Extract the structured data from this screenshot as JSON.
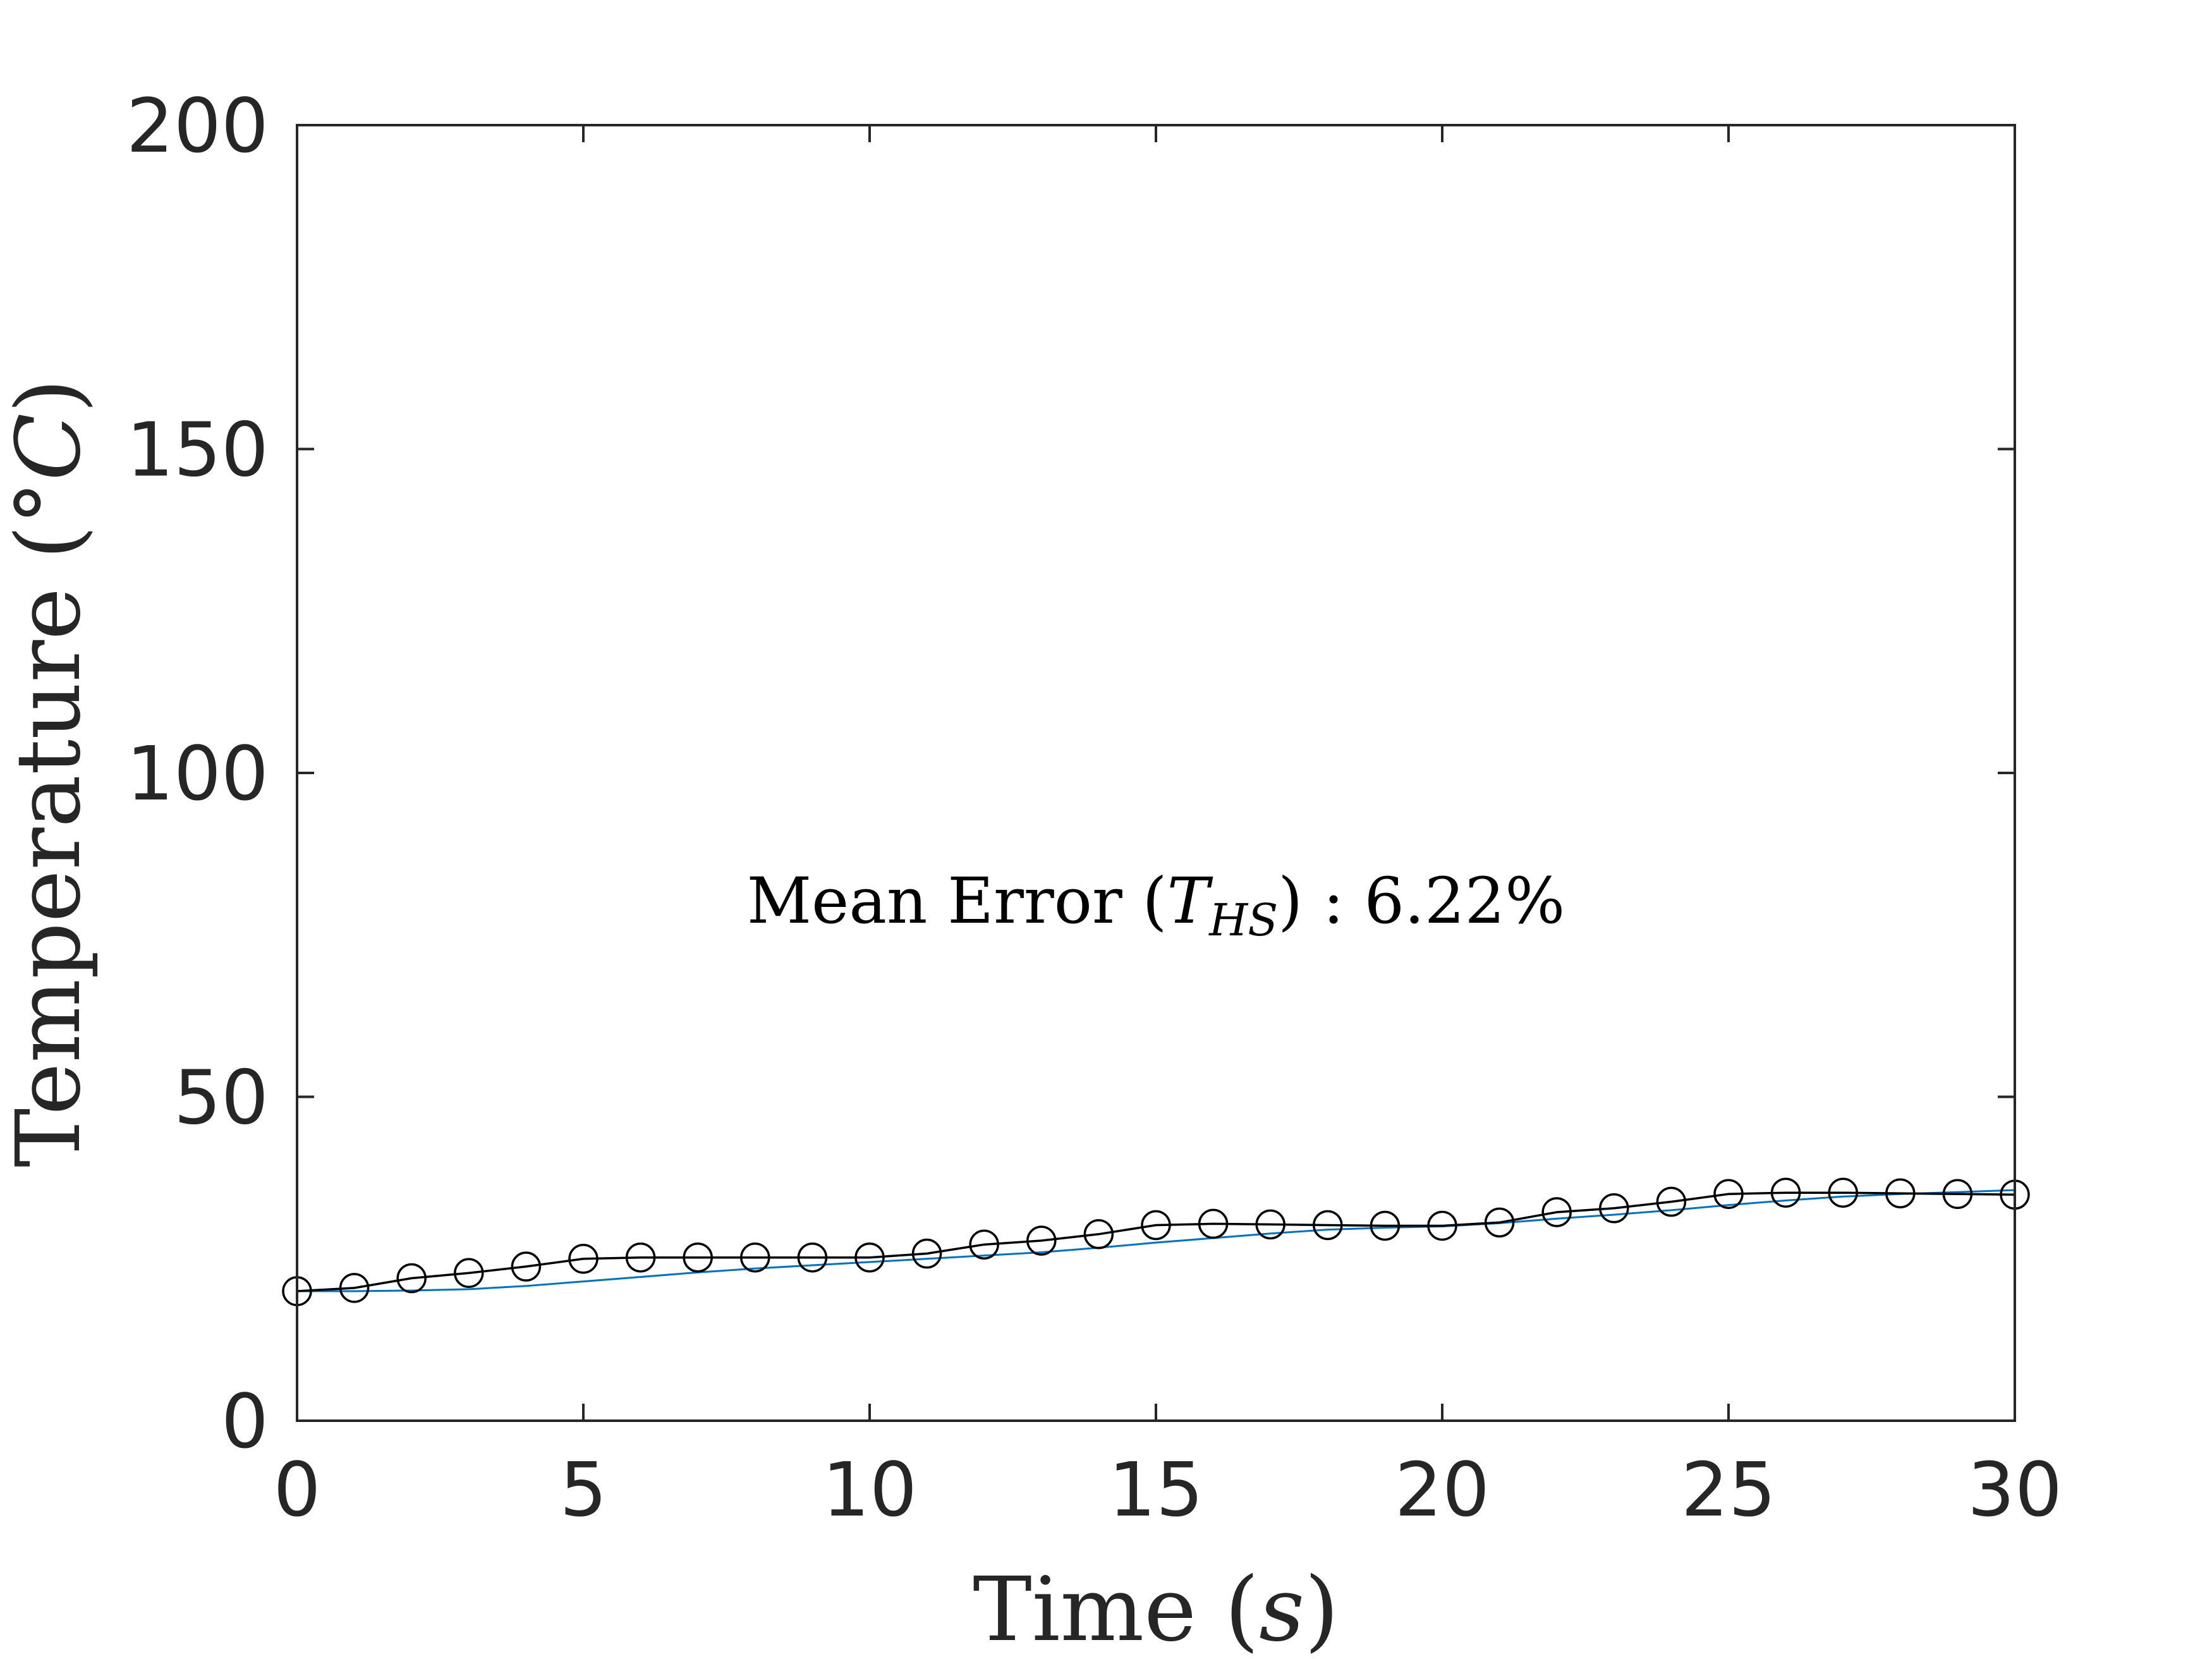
{
  "chart_data": {
    "type": "line",
    "title": "",
    "xlabel": {
      "text": "Time (",
      "var": "s",
      "close": ")"
    },
    "ylabel": {
      "text": "Temperature (°",
      "var": "C",
      "close": ")"
    },
    "xlim": [
      0,
      30
    ],
    "ylim": [
      0,
      200
    ],
    "xticks": [
      0,
      5,
      10,
      15,
      20,
      25,
      30
    ],
    "yticks": [
      0,
      50,
      100,
      150,
      200
    ],
    "grid": false,
    "annotation": {
      "prefix": "Mean Error (",
      "var": "T",
      "sub": "HS",
      "suffix": ") : 6.22%",
      "x": 15,
      "y": 80
    },
    "series": [
      {
        "style": "line",
        "color": "#0072BD",
        "x": [
          0,
          1,
          2,
          3,
          4,
          5,
          6,
          7,
          8,
          9,
          10,
          11,
          12,
          13,
          14,
          15,
          16,
          17,
          18,
          19,
          20,
          21,
          22,
          23,
          24,
          25,
          26,
          27,
          28,
          29,
          30
        ],
        "y": [
          20,
          20,
          20.1,
          20.3,
          20.8,
          21.5,
          22.2,
          22.9,
          23.5,
          24,
          24.5,
          25,
          25.5,
          26,
          26.7,
          27.5,
          28.2,
          28.9,
          29.5,
          29.8,
          30,
          30.5,
          31.2,
          31.8,
          32.5,
          33.3,
          34,
          34.6,
          35,
          35.3,
          35.6
        ]
      },
      {
        "style": "line-marker",
        "color": "#000000",
        "marker": "circle-open",
        "x": [
          0,
          1,
          2,
          3,
          4,
          5,
          6,
          7,
          8,
          9,
          10,
          11,
          12,
          13,
          14,
          15,
          16,
          17,
          18,
          19,
          20,
          21,
          22,
          23,
          24,
          25,
          26,
          27,
          28,
          29,
          30
        ],
        "y": [
          20,
          20.5,
          22,
          22.8,
          23.8,
          25,
          25.2,
          25.2,
          25.2,
          25.2,
          25.2,
          25.8,
          27.2,
          27.8,
          28.8,
          30.2,
          30.4,
          30.3,
          30.2,
          30.1,
          30.1,
          30.6,
          32.2,
          32.8,
          33.8,
          35,
          35.2,
          35.2,
          35.1,
          35,
          34.9
        ]
      }
    ]
  }
}
